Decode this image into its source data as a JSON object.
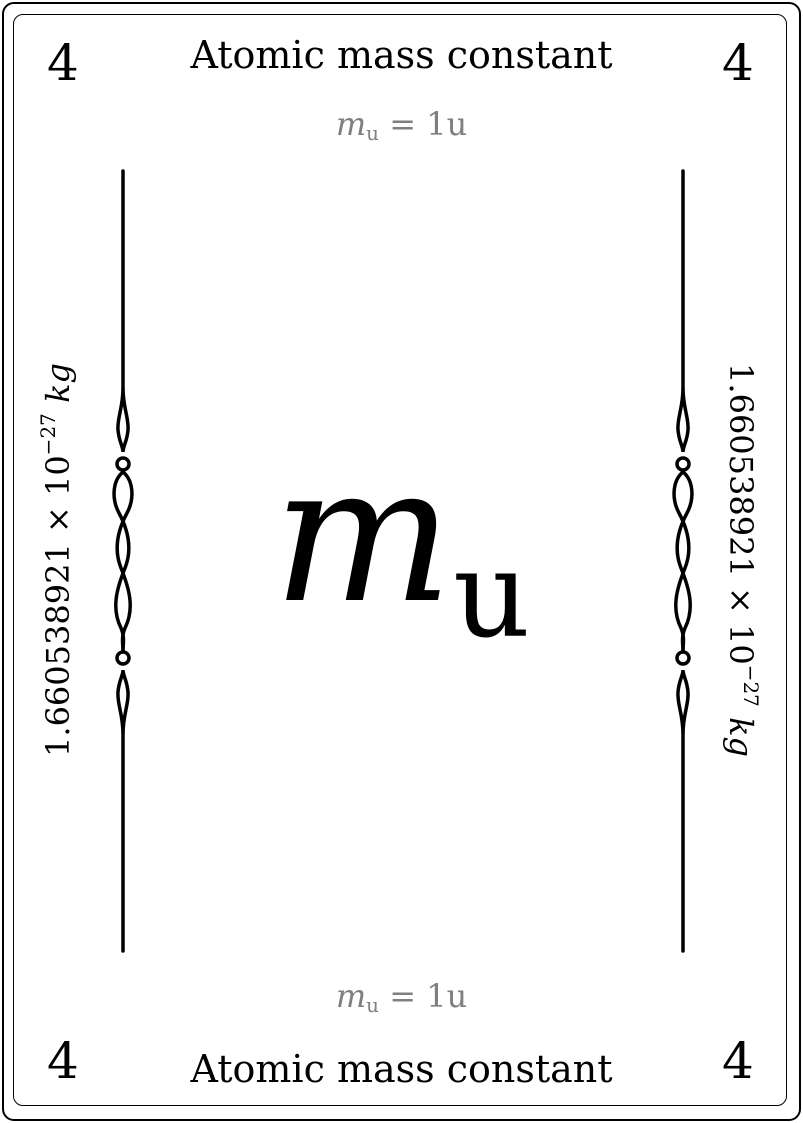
{
  "card": {
    "number": "4",
    "title": "Atomic mass constant",
    "symbol": "m",
    "symbol_subscript": "u",
    "formula_symbol": "m",
    "formula_subscript": "u",
    "formula_rest": " = 1u",
    "value_mantissa": "1.660538921 × 10",
    "value_exponent": "−27",
    "value_unit": "kg",
    "colors": {
      "text": "#000000",
      "formula": "#7f7f7f",
      "background": "#ffffff"
    }
  }
}
